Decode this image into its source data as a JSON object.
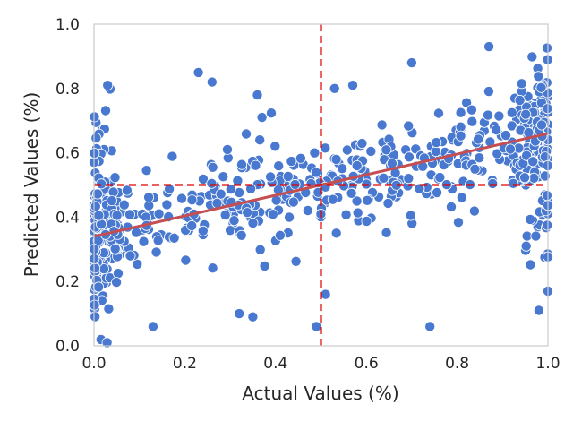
{
  "chart_data": {
    "type": "scatter",
    "title": "",
    "xlabel": "Actual Values (%)",
    "ylabel": "Predicted Values (%)",
    "xlim": [
      0.0,
      1.0
    ],
    "ylim": [
      0.0,
      1.0
    ],
    "xticks": [
      "0.0",
      "0.2",
      "0.4",
      "0.6",
      "0.8",
      "1.0"
    ],
    "yticks": [
      "0.0",
      "0.2",
      "0.4",
      "0.6",
      "0.8",
      "1.0"
    ],
    "grid": false,
    "point_color": "#4878CF",
    "point_edge_color": "#ffffff",
    "point_count": 700,
    "point_distribution": "denser near x=0 and x=1; regression roughly y = 0.34 + 0.32x with wide scatter",
    "reference_lines": [
      {
        "orientation": "vertical",
        "value": 0.5,
        "color": "#e00000",
        "style": "dashed"
      },
      {
        "orientation": "horizontal",
        "value": 0.5,
        "color": "#e00000",
        "style": "dashed"
      }
    ],
    "trend_line": {
      "x": [
        0.0,
        1.0
      ],
      "y": [
        0.34,
        0.66
      ],
      "color": "#c44e52"
    },
    "highlighted_points": [
      {
        "x": 0.23,
        "y": 0.85
      },
      {
        "x": 0.26,
        "y": 0.82
      },
      {
        "x": 0.87,
        "y": 0.93
      },
      {
        "x": 0.74,
        "y": 0.06
      },
      {
        "x": 0.49,
        "y": 0.06
      },
      {
        "x": 0.51,
        "y": 0.16
      },
      {
        "x": 0.53,
        "y": 0.8
      },
      {
        "x": 0.57,
        "y": 0.81
      },
      {
        "x": 0.7,
        "y": 0.88
      },
      {
        "x": 0.98,
        "y": 0.11
      },
      {
        "x": 1.0,
        "y": 0.17
      },
      {
        "x": 0.03,
        "y": 0.81
      },
      {
        "x": 0.36,
        "y": 0.78
      },
      {
        "x": 0.37,
        "y": 0.71
      },
      {
        "x": 0.13,
        "y": 0.06
      },
      {
        "x": 0.32,
        "y": 0.1
      },
      {
        "x": 0.35,
        "y": 0.09
      }
    ]
  }
}
